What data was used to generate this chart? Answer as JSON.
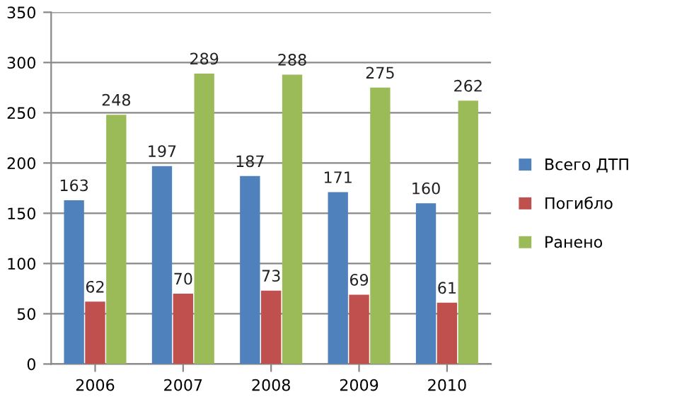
{
  "chart_data": {
    "type": "bar",
    "categories": [
      "2006",
      "2007",
      "2008",
      "2009",
      "2010"
    ],
    "series": [
      {
        "name": "Всего ДТП",
        "color": "#4f81bd",
        "values": [
          163,
          197,
          187,
          171,
          160
        ]
      },
      {
        "name": "Погибло",
        "color": "#c0504d",
        "values": [
          62,
          70,
          73,
          69,
          61
        ]
      },
      {
        "name": "Ранено",
        "color": "#9bbb59",
        "values": [
          248,
          289,
          288,
          275,
          262
        ]
      }
    ],
    "ylim": [
      0,
      350
    ],
    "yticks": [
      0,
      50,
      100,
      150,
      200,
      250,
      300,
      350
    ],
    "grid": "y",
    "legend": "right",
    "data_labels": true
  }
}
